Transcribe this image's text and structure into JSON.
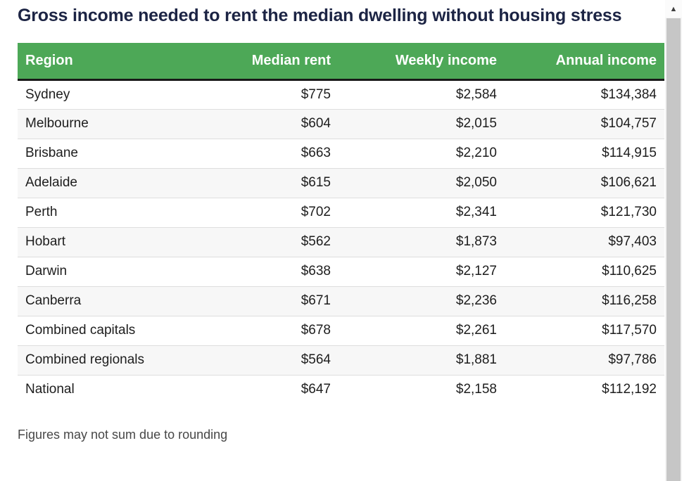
{
  "title": "Gross income needed to rent the median dwelling without housing stress",
  "footnote": "Figures may not sum due to rounding",
  "table": {
    "columns": [
      "Region",
      "Median rent",
      "Weekly income",
      "Annual income"
    ],
    "rows": [
      {
        "region": "Sydney",
        "median_rent": "$775",
        "weekly_income": "$2,584",
        "annual_income": "$134,384"
      },
      {
        "region": "Melbourne",
        "median_rent": "$604",
        "weekly_income": "$2,015",
        "annual_income": "$104,757"
      },
      {
        "region": "Brisbane",
        "median_rent": "$663",
        "weekly_income": "$2,210",
        "annual_income": "$114,915"
      },
      {
        "region": "Adelaide",
        "median_rent": "$615",
        "weekly_income": "$2,050",
        "annual_income": "$106,621"
      },
      {
        "region": "Perth",
        "median_rent": "$702",
        "weekly_income": "$2,341",
        "annual_income": "$121,730"
      },
      {
        "region": "Hobart",
        "median_rent": "$562",
        "weekly_income": "$1,873",
        "annual_income": "$97,403"
      },
      {
        "region": "Darwin",
        "median_rent": "$638",
        "weekly_income": "$2,127",
        "annual_income": "$110,625"
      },
      {
        "region": "Canberra",
        "median_rent": "$671",
        "weekly_income": "$2,236",
        "annual_income": "$116,258"
      },
      {
        "region": "Combined capitals",
        "median_rent": "$678",
        "weekly_income": "$2,261",
        "annual_income": "$117,570"
      },
      {
        "region": "Combined regionals",
        "median_rent": "$564",
        "weekly_income": "$1,881",
        "annual_income": "$97,786"
      },
      {
        "region": "National",
        "median_rent": "$647",
        "weekly_income": "$2,158",
        "annual_income": "$112,192"
      }
    ]
  },
  "chart_data": {
    "type": "table",
    "title": "Gross income needed to rent the median dwelling without housing stress",
    "columns": [
      "Region",
      "Median rent",
      "Weekly income",
      "Annual income"
    ],
    "categories": [
      "Sydney",
      "Melbourne",
      "Brisbane",
      "Adelaide",
      "Perth",
      "Hobart",
      "Darwin",
      "Canberra",
      "Combined capitals",
      "Combined regionals",
      "National"
    ],
    "series": [
      {
        "name": "Median rent",
        "values": [
          775,
          604,
          663,
          615,
          702,
          562,
          638,
          671,
          678,
          564,
          647
        ]
      },
      {
        "name": "Weekly income",
        "values": [
          2584,
          2015,
          2210,
          2050,
          2341,
          1873,
          2127,
          2236,
          2261,
          1881,
          2158
        ]
      },
      {
        "name": "Annual income",
        "values": [
          134384,
          104757,
          114915,
          106621,
          121730,
          97403,
          110625,
          116258,
          117570,
          97786,
          112192
        ]
      }
    ],
    "annotations": [
      "Figures may not sum due to rounding"
    ]
  },
  "scrollbar": {
    "up_arrow_icon": "▲"
  },
  "colors": {
    "header_green": "#4da857",
    "title_navy": "#1c2444",
    "header_border": "#191919",
    "row_alt": "#f7f7f7"
  }
}
